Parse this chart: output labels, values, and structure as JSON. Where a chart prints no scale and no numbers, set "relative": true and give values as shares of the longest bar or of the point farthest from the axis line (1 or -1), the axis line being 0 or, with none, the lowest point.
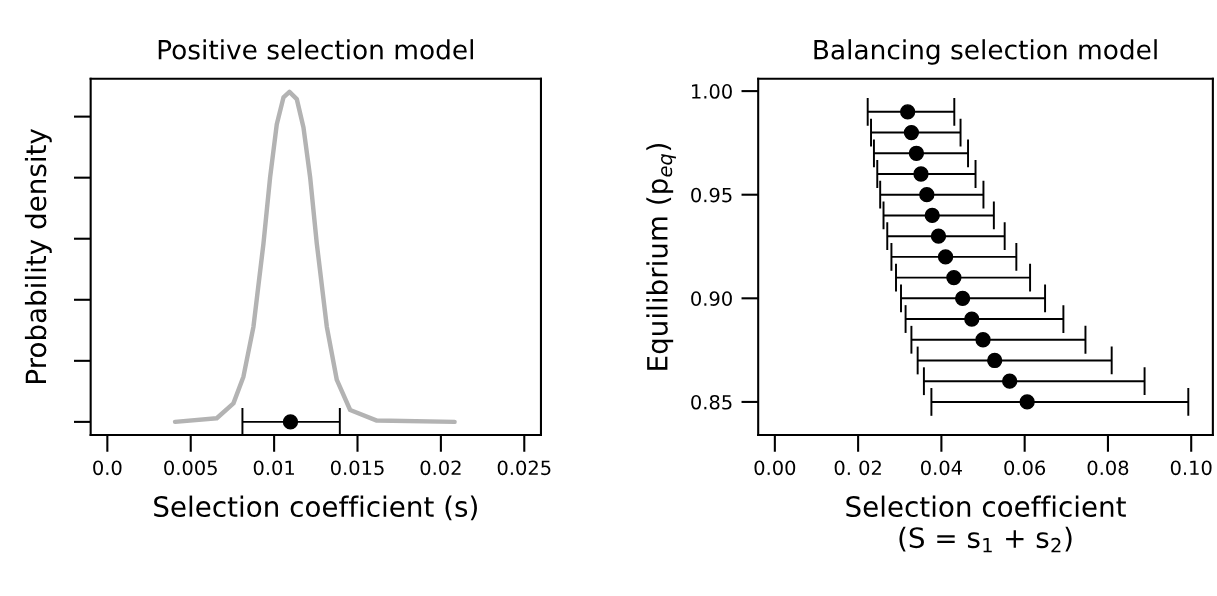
{
  "chart_data": [
    {
      "type": "line",
      "title": "Positive selection model",
      "xlabel": "Selection coefficient (s)",
      "ylabel": "Probability density",
      "relative": true,
      "xlim": [
        -0.001,
        0.026
      ],
      "xticks": [
        {
          "value": 0,
          "label": "0.0"
        },
        0.005,
        0.01,
        0.015,
        0.02,
        0.025
      ],
      "series": [
        {
          "type": "line",
          "color": "#b3b3b3",
          "x": [
            0.00406,
            0.00656,
            0.00756,
            0.00816,
            0.00876,
            0.00936,
            0.00976,
            0.01016,
            0.01056,
            0.01092,
            0.01136,
            0.01176,
            0.01216,
            0.01256,
            0.01316,
            0.01376,
            0.01456,
            0.01616,
            0.02082
          ],
          "values": [
            0,
            0.011,
            0.056,
            0.137,
            0.288,
            0.54,
            0.741,
            0.902,
            0.983,
            1,
            0.978,
            0.892,
            0.741,
            0.54,
            0.288,
            0.127,
            0.036,
            0.004,
            0
          ]
        },
        {
          "type": "scatter",
          "color": "#000000",
          "marker": "circle",
          "x": [
            0.01098
          ],
          "values": [
            0
          ],
          "xerrors": [
            [
              0.0081,
              0.01394
            ]
          ]
        }
      ]
    },
    {
      "type": "scatter",
      "title": "Balancing selection model",
      "xlabel": "Selection coefficient\n(S = s$_{1}$ + s$_{2}$)",
      "ylabel": "Equilibrium (p$_{eq}$)",
      "marker": "circle",
      "color": "#000000",
      "xlim": [
        -0.004,
        0.1052
      ],
      "ylim": [
        0.834,
        1.006
      ],
      "xticks": [
        {
          "value": 0.0,
          "label": "0.00"
        },
        {
          "value": 0.02,
          "label": "0. 02"
        },
        {
          "value": 0.04,
          "label": "0.04"
        },
        {
          "value": 0.06,
          "label": "0.06"
        },
        {
          "value": 0.08,
          "label": "0.08"
        },
        {
          "value": 0.1,
          "label": "0.10"
        }
      ],
      "yticks": [
        {
          "value": 0.85,
          "label": "0.85"
        },
        {
          "value": 0.9,
          "label": "0.90"
        },
        {
          "value": 0.95,
          "label": "0.95"
        },
        {
          "value": 1.0,
          "label": "1.00"
        }
      ],
      "x": [
        0.0319,
        0.0328,
        0.034,
        0.0351,
        0.0365,
        0.0378,
        0.0393,
        0.041,
        0.043,
        0.0451,
        0.0473,
        0.05,
        0.0528,
        0.0564,
        0.0606
      ],
      "values": [
        0.99,
        0.98,
        0.97,
        0.96,
        0.95,
        0.94,
        0.93,
        0.92,
        0.91,
        0.9,
        0.89,
        0.88,
        0.87,
        0.86,
        0.85
      ],
      "xerrors": [
        [
          0.0223,
          0.0431
        ],
        [
          0.0231,
          0.0446
        ],
        [
          0.0238,
          0.0464
        ],
        [
          0.0246,
          0.0482
        ],
        [
          0.0253,
          0.0501
        ],
        [
          0.0261,
          0.0526
        ],
        [
          0.027,
          0.0552
        ],
        [
          0.028,
          0.058
        ],
        [
          0.0291,
          0.0613
        ],
        [
          0.0303,
          0.0649
        ],
        [
          0.0314,
          0.0693
        ],
        [
          0.0328,
          0.0746
        ],
        [
          0.0343,
          0.0809
        ],
        [
          0.0358,
          0.0888
        ],
        [
          0.0376,
          0.0993
        ]
      ]
    }
  ]
}
